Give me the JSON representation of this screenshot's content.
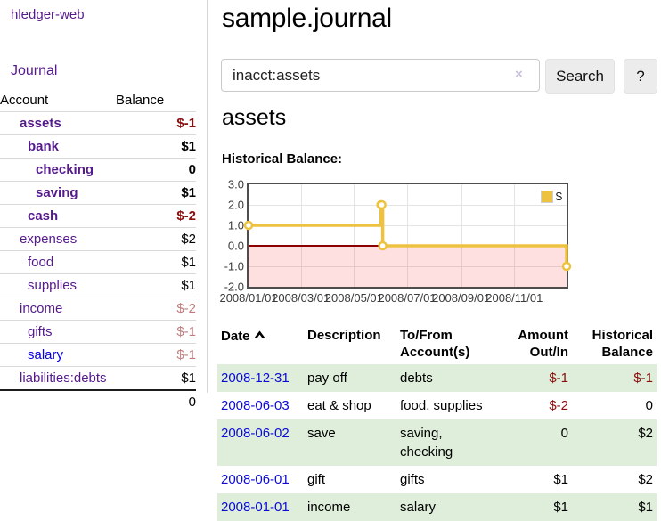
{
  "app": {
    "brand": "hledger-web",
    "nav_journal": "Journal"
  },
  "sidebar": {
    "account_header": "Account",
    "balance_header": "Balance",
    "accounts": [
      {
        "name": "assets",
        "depth": 1,
        "strong": true,
        "name_tone": "purple",
        "balance": "$-1",
        "balance_tone": "neg-strong"
      },
      {
        "name": "bank",
        "depth": 2,
        "strong": true,
        "name_tone": "purple",
        "balance": "$1",
        "balance_tone": ""
      },
      {
        "name": "checking",
        "depth": 3,
        "strong": true,
        "name_tone": "purple",
        "balance": "0",
        "balance_tone": ""
      },
      {
        "name": "saving",
        "depth": 3,
        "strong": true,
        "name_tone": "purple",
        "balance": "$1",
        "balance_tone": ""
      },
      {
        "name": "cash",
        "depth": 2,
        "strong": true,
        "name_tone": "purple",
        "balance": "$-2",
        "balance_tone": "neg-strong"
      },
      {
        "name": "expenses",
        "depth": 1,
        "strong": false,
        "name_tone": "purple",
        "balance": "$2",
        "balance_tone": ""
      },
      {
        "name": "food",
        "depth": 2,
        "strong": false,
        "name_tone": "purple",
        "balance": "$1",
        "balance_tone": ""
      },
      {
        "name": "supplies",
        "depth": 2,
        "strong": false,
        "name_tone": "purple",
        "balance": "$1",
        "balance_tone": ""
      },
      {
        "name": "income",
        "depth": 1,
        "strong": false,
        "name_tone": "purple",
        "balance": "$-2",
        "balance_tone": "neg-soft"
      },
      {
        "name": "gifts",
        "depth": 2,
        "strong": false,
        "name_tone": "purple",
        "balance": "$-1",
        "balance_tone": "neg-soft"
      },
      {
        "name": "salary",
        "depth": 2,
        "strong": false,
        "name_tone": "blue",
        "balance": "$-1",
        "balance_tone": "neg-soft"
      },
      {
        "name": "liabilities:debts",
        "depth": 1,
        "strong": false,
        "name_tone": "purple",
        "balance": "$1",
        "balance_tone": ""
      }
    ],
    "total": "0"
  },
  "main": {
    "title": "sample.journal",
    "search": {
      "value": "inacct:assets",
      "clear_icon": "×",
      "button": "Search",
      "help_button": "?"
    },
    "account_heading": "assets",
    "chart_label": "Historical Balance:"
  },
  "chart_data": {
    "type": "line",
    "title": "Historical Balance",
    "step": true,
    "series": [
      {
        "name": "$",
        "color": "#edc240",
        "points": [
          [
            "2008-01-01",
            1
          ],
          [
            "2008-06-01",
            2
          ],
          [
            "2008-06-02",
            2
          ],
          [
            "2008-06-03",
            0
          ],
          [
            "2008-12-31",
            -1
          ]
        ]
      }
    ],
    "x_range": [
      "2008-01-01",
      "2008-12-31"
    ],
    "ylim": [
      -2,
      3
    ],
    "y_ticks": [
      "3.0",
      "2.0",
      "1.0",
      "0.0",
      "-1.0",
      "-2.0"
    ],
    "x_ticks": [
      "2008/01/01",
      "2008/03/01",
      "2008/05/01",
      "2008/07/01",
      "2008/09/01",
      "2008/11/01"
    ],
    "legend": "$",
    "legend_position": "top-right",
    "grid": true,
    "negative_region_shaded": true,
    "zero_line_color": "#8b0000"
  },
  "transactions": {
    "headers": {
      "date": "Date",
      "description": "Description",
      "accounts": "To/From\nAccount(s)",
      "amount": "Amount\nOut/In",
      "balance": "Historical\nBalance"
    },
    "rows": [
      {
        "date": "2008-12-31",
        "description": "pay off",
        "accounts": "debts",
        "amount": "$-1",
        "amount_tone": "neg",
        "balance": "$-1",
        "balance_tone": "neg",
        "shaded": true
      },
      {
        "date": "2008-06-03",
        "description": "eat & shop",
        "accounts": "food, supplies",
        "amount": "$-2",
        "amount_tone": "neg",
        "balance": "0",
        "balance_tone": "",
        "shaded": false
      },
      {
        "date": "2008-06-02",
        "description": "save",
        "accounts": "saving,\nchecking",
        "amount": "0",
        "amount_tone": "",
        "balance": "$2",
        "balance_tone": "",
        "shaded": true
      },
      {
        "date": "2008-06-01",
        "description": "gift",
        "accounts": "gifts",
        "amount": "$1",
        "amount_tone": "",
        "balance": "$2",
        "balance_tone": "",
        "shaded": false
      },
      {
        "date": "2008-01-01",
        "description": "income",
        "accounts": "salary",
        "amount": "$1",
        "amount_tone": "",
        "balance": "$1",
        "balance_tone": "",
        "shaded": true
      }
    ]
  }
}
